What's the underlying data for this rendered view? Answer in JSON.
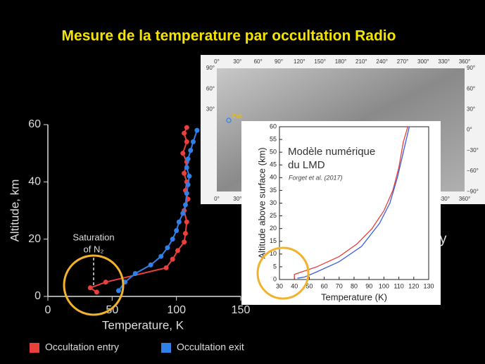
{
  "slide_title": "Mesure de la temperature par occultation Radio",
  "map": {
    "lon_labels": [
      "0°",
      "30°",
      "60°",
      "90°",
      "120°",
      "150°",
      "180°",
      "210°",
      "240°",
      "270°",
      "300°",
      "330°",
      "360°"
    ],
    "left_lat_labels": [
      "90°",
      "60°",
      "30°"
    ],
    "right_lat_labels": [
      "90°",
      "60°",
      "30°",
      "0°",
      "−30°",
      "−60°",
      "−90°"
    ],
    "exit_label": "Exit",
    "entry_label": "entry"
  },
  "chart_data": [
    {
      "type": "line",
      "x_label": "Temperature, K",
      "y_label": "Altitude, km",
      "annotation": [
        "Saturation",
        "of N₂"
      ],
      "xlim": [
        0,
        150
      ],
      "ylim": [
        0,
        60
      ],
      "xticks": [
        0,
        50,
        100,
        150
      ],
      "yticks": [
        0,
        20,
        40,
        60
      ],
      "series": [
        {
          "name": "Occultation entry",
          "color": "#e8403c",
          "x": [
            38,
            33,
            45,
            92,
            97,
            101,
            106,
            107,
            108,
            106,
            109,
            107,
            108,
            106,
            108,
            105,
            108,
            106,
            108
          ],
          "values": [
            1.5,
            3,
            5,
            10,
            13,
            16,
            19,
            22,
            26,
            30,
            34,
            37,
            40,
            43,
            47,
            50,
            54,
            57,
            59
          ]
        },
        {
          "name": "Occultation exit",
          "color": "#2f80e8",
          "x": [
            55,
            60,
            68,
            80,
            88,
            93,
            97,
            100,
            102,
            105,
            107,
            108,
            109,
            110,
            108,
            109,
            111,
            113,
            116
          ],
          "values": [
            2,
            5,
            8,
            11,
            14,
            17,
            20,
            23,
            26,
            29,
            32,
            36,
            39,
            42,
            45,
            48,
            51,
            54,
            58
          ]
        }
      ]
    },
    {
      "type": "line",
      "x_label": "Temperature (K)",
      "y_label": "Altitude above surface (km)",
      "annotation": [
        "Modèle numérique",
        "du LMD"
      ],
      "citation": "Forget et al. (2017)",
      "xlim": [
        30,
        130
      ],
      "ylim": [
        0,
        60
      ],
      "xticks": [
        30,
        40,
        50,
        60,
        70,
        80,
        90,
        100,
        110,
        120,
        130
      ],
      "yticks": [
        0,
        5,
        10,
        15,
        20,
        25,
        30,
        35,
        40,
        45,
        50,
        55,
        60
      ],
      "series": [
        {
          "color": "#e8403c",
          "x": [
            40,
            40,
            45,
            55,
            70,
            82,
            92,
            100,
            106,
            110,
            113,
            116
          ],
          "values": [
            0.5,
            2,
            3,
            5,
            9,
            14,
            20,
            27,
            35,
            44,
            54,
            60
          ]
        },
        {
          "color": "#3a5de0",
          "x": [
            42,
            47,
            55,
            70,
            85,
            97,
            104,
            109,
            113,
            117
          ],
          "values": [
            0.5,
            1,
            3,
            7,
            13,
            22,
            30,
            40,
            50,
            60
          ]
        }
      ]
    }
  ]
}
